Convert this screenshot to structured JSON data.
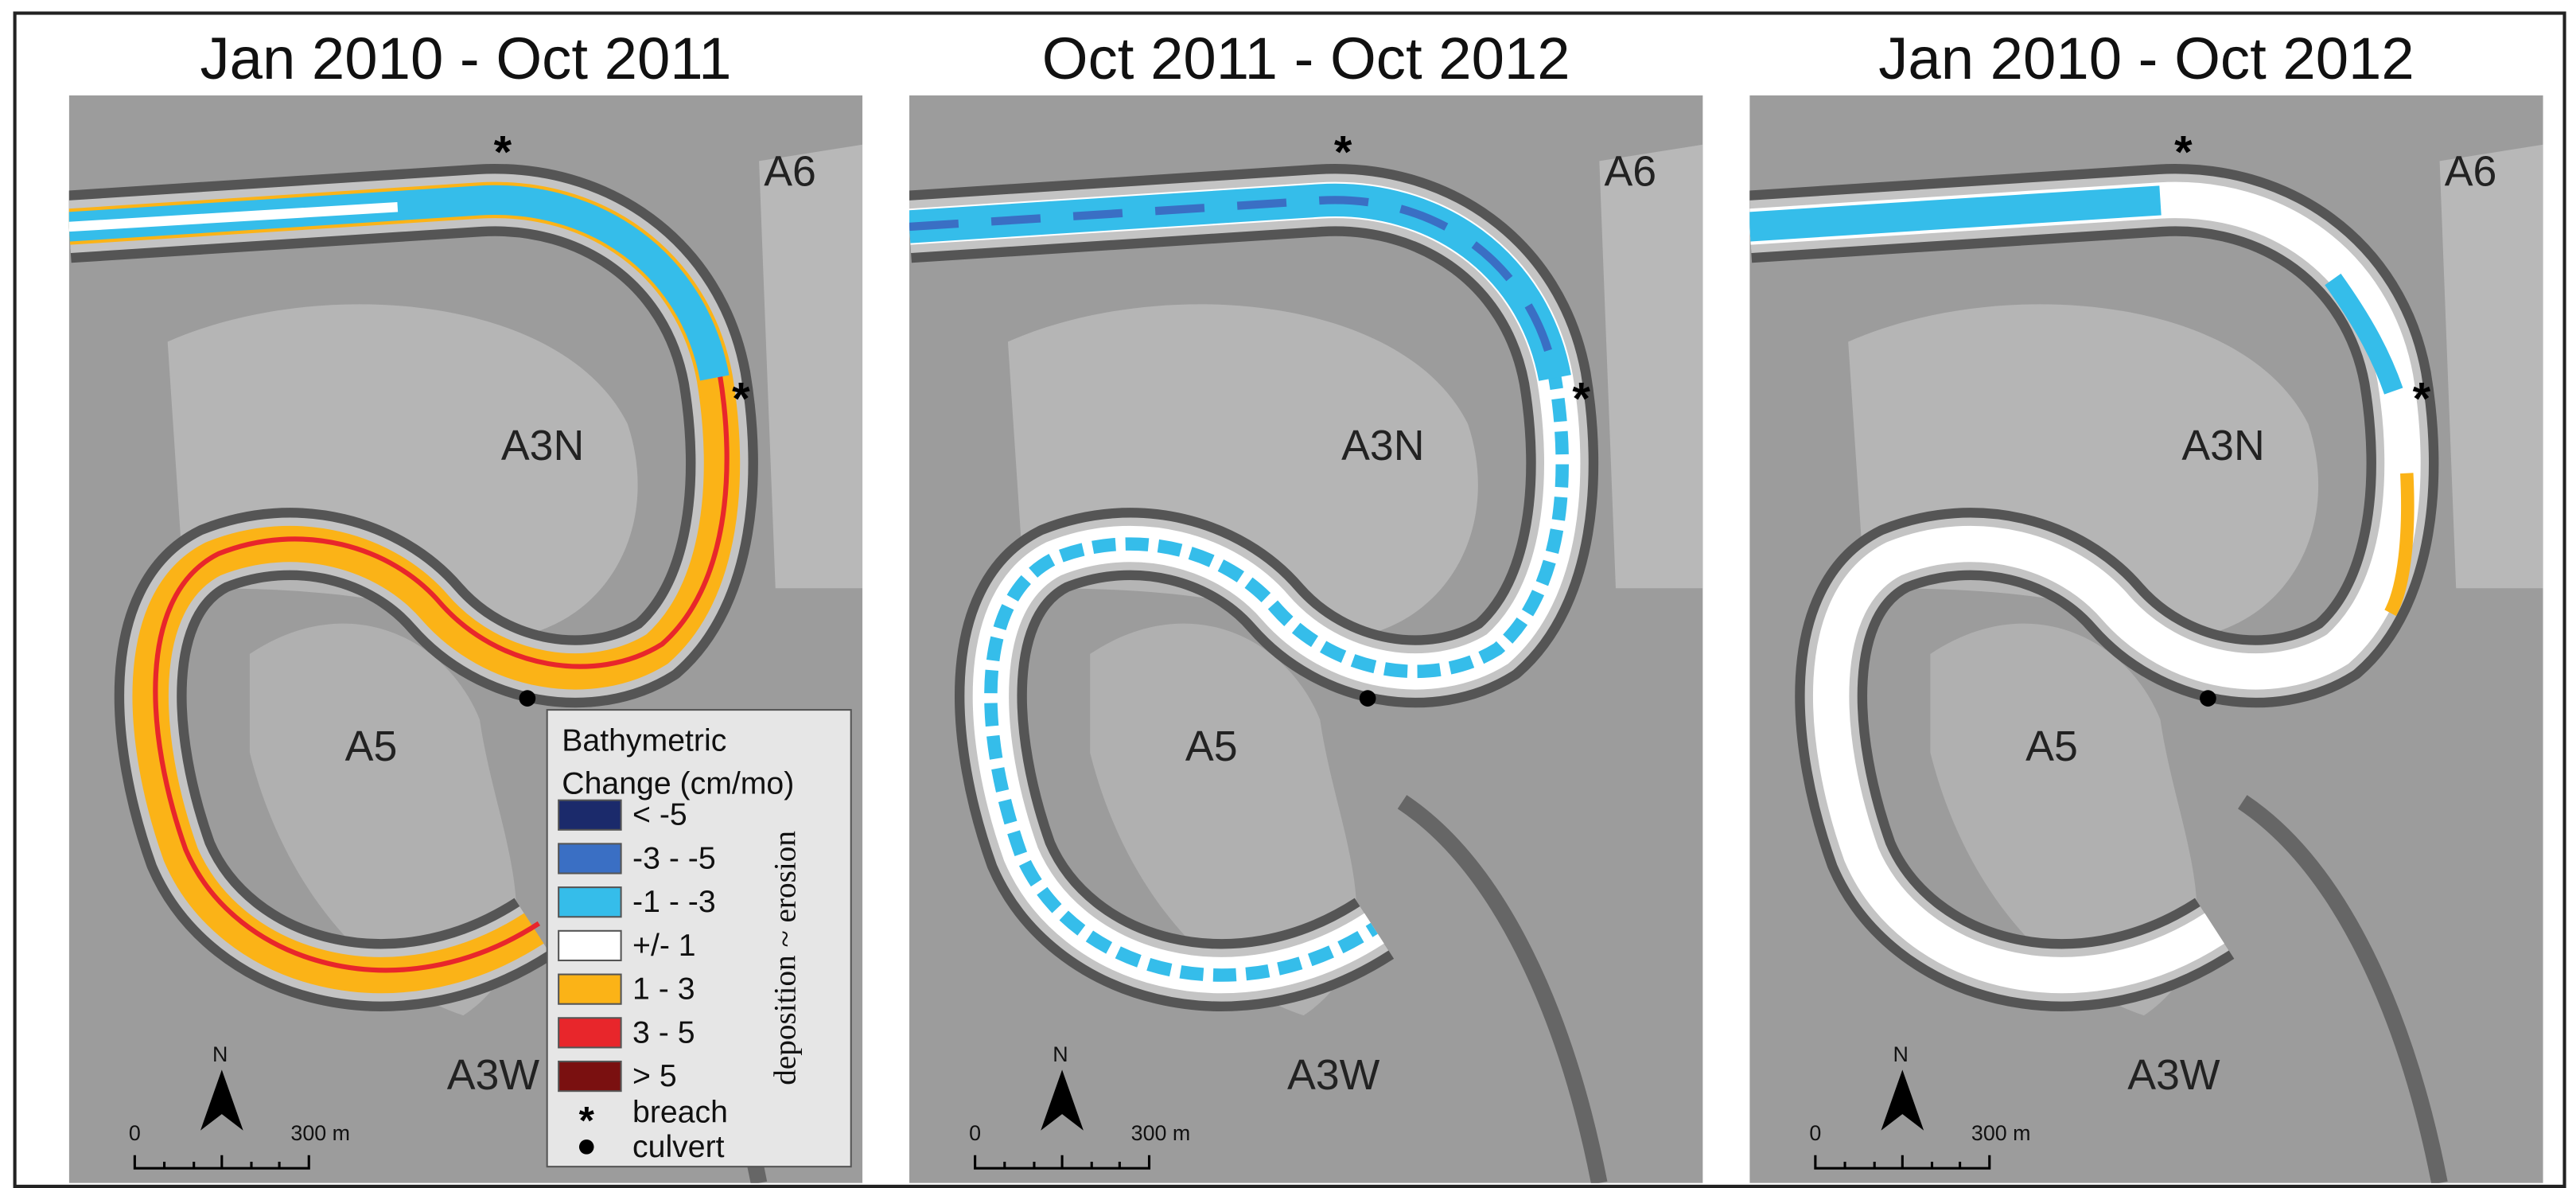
{
  "panels": [
    {
      "title": "Jan 2010 - Oct 2011",
      "labels": [
        "A6",
        "A3N",
        "A5",
        "A3W"
      ],
      "north": "N",
      "scale": [
        "0",
        "300 m"
      ]
    },
    {
      "title": "Oct 2011 - Oct 2012",
      "labels": [
        "A6",
        "A3N",
        "A5",
        "A3W"
      ],
      "north": "N",
      "scale": [
        "0",
        "300 m"
      ]
    },
    {
      "title": "Jan 2010 - Oct 2012",
      "labels": [
        "A6",
        "A3N",
        "A5",
        "A3W"
      ],
      "north": "N",
      "scale": [
        "0",
        "300 m"
      ]
    }
  ],
  "legend": {
    "title": [
      "Bathymetric",
      "Change (cm/mo)"
    ],
    "items": [
      {
        "label": "< -5",
        "color": "#1b2a6b"
      },
      {
        "label": "-3 - -5",
        "color": "#3a6fc4"
      },
      {
        "label": "-1 - -3",
        "color": "#35bdea"
      },
      {
        "label": "+/- 1",
        "color": "#ffffff"
      },
      {
        "label": "1 - 3",
        "color": "#fbb317"
      },
      {
        "label": "3 - 5",
        "color": "#e8262b"
      },
      {
        "label": "> 5",
        "color": "#7a1010"
      }
    ],
    "symbols": [
      "breach",
      "culvert"
    ],
    "side_note": "deposition ~ erosion"
  }
}
